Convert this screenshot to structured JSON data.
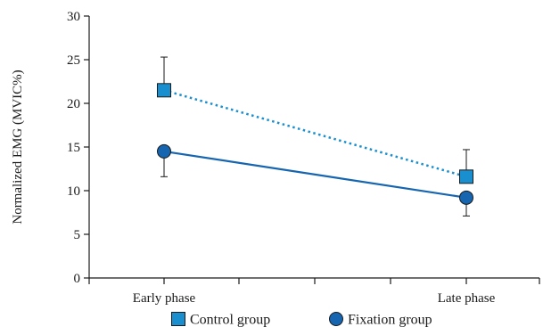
{
  "chart_data": {
    "type": "line",
    "categories": [
      "Early phase",
      "Late phase"
    ],
    "ylabel": "Normalized EMG (MVIC%)",
    "xlabel": "",
    "ylim": [
      0,
      30
    ],
    "yticks": [
      0,
      5,
      10,
      15,
      20,
      25,
      30
    ],
    "grid": false,
    "legend_position": "bottom",
    "series": [
      {
        "name": "Control group",
        "values": [
          21.5,
          11.6
        ],
        "errors": [
          3.8,
          3.1
        ],
        "color": "#1a8fd0",
        "marker": "square",
        "line_style": "dotted"
      },
      {
        "name": "Fixation group",
        "values": [
          14.5,
          9.2
        ],
        "errors": [
          2.9,
          2.1
        ],
        "color": "#1565b0",
        "marker": "circle",
        "line_style": "solid"
      }
    ]
  }
}
